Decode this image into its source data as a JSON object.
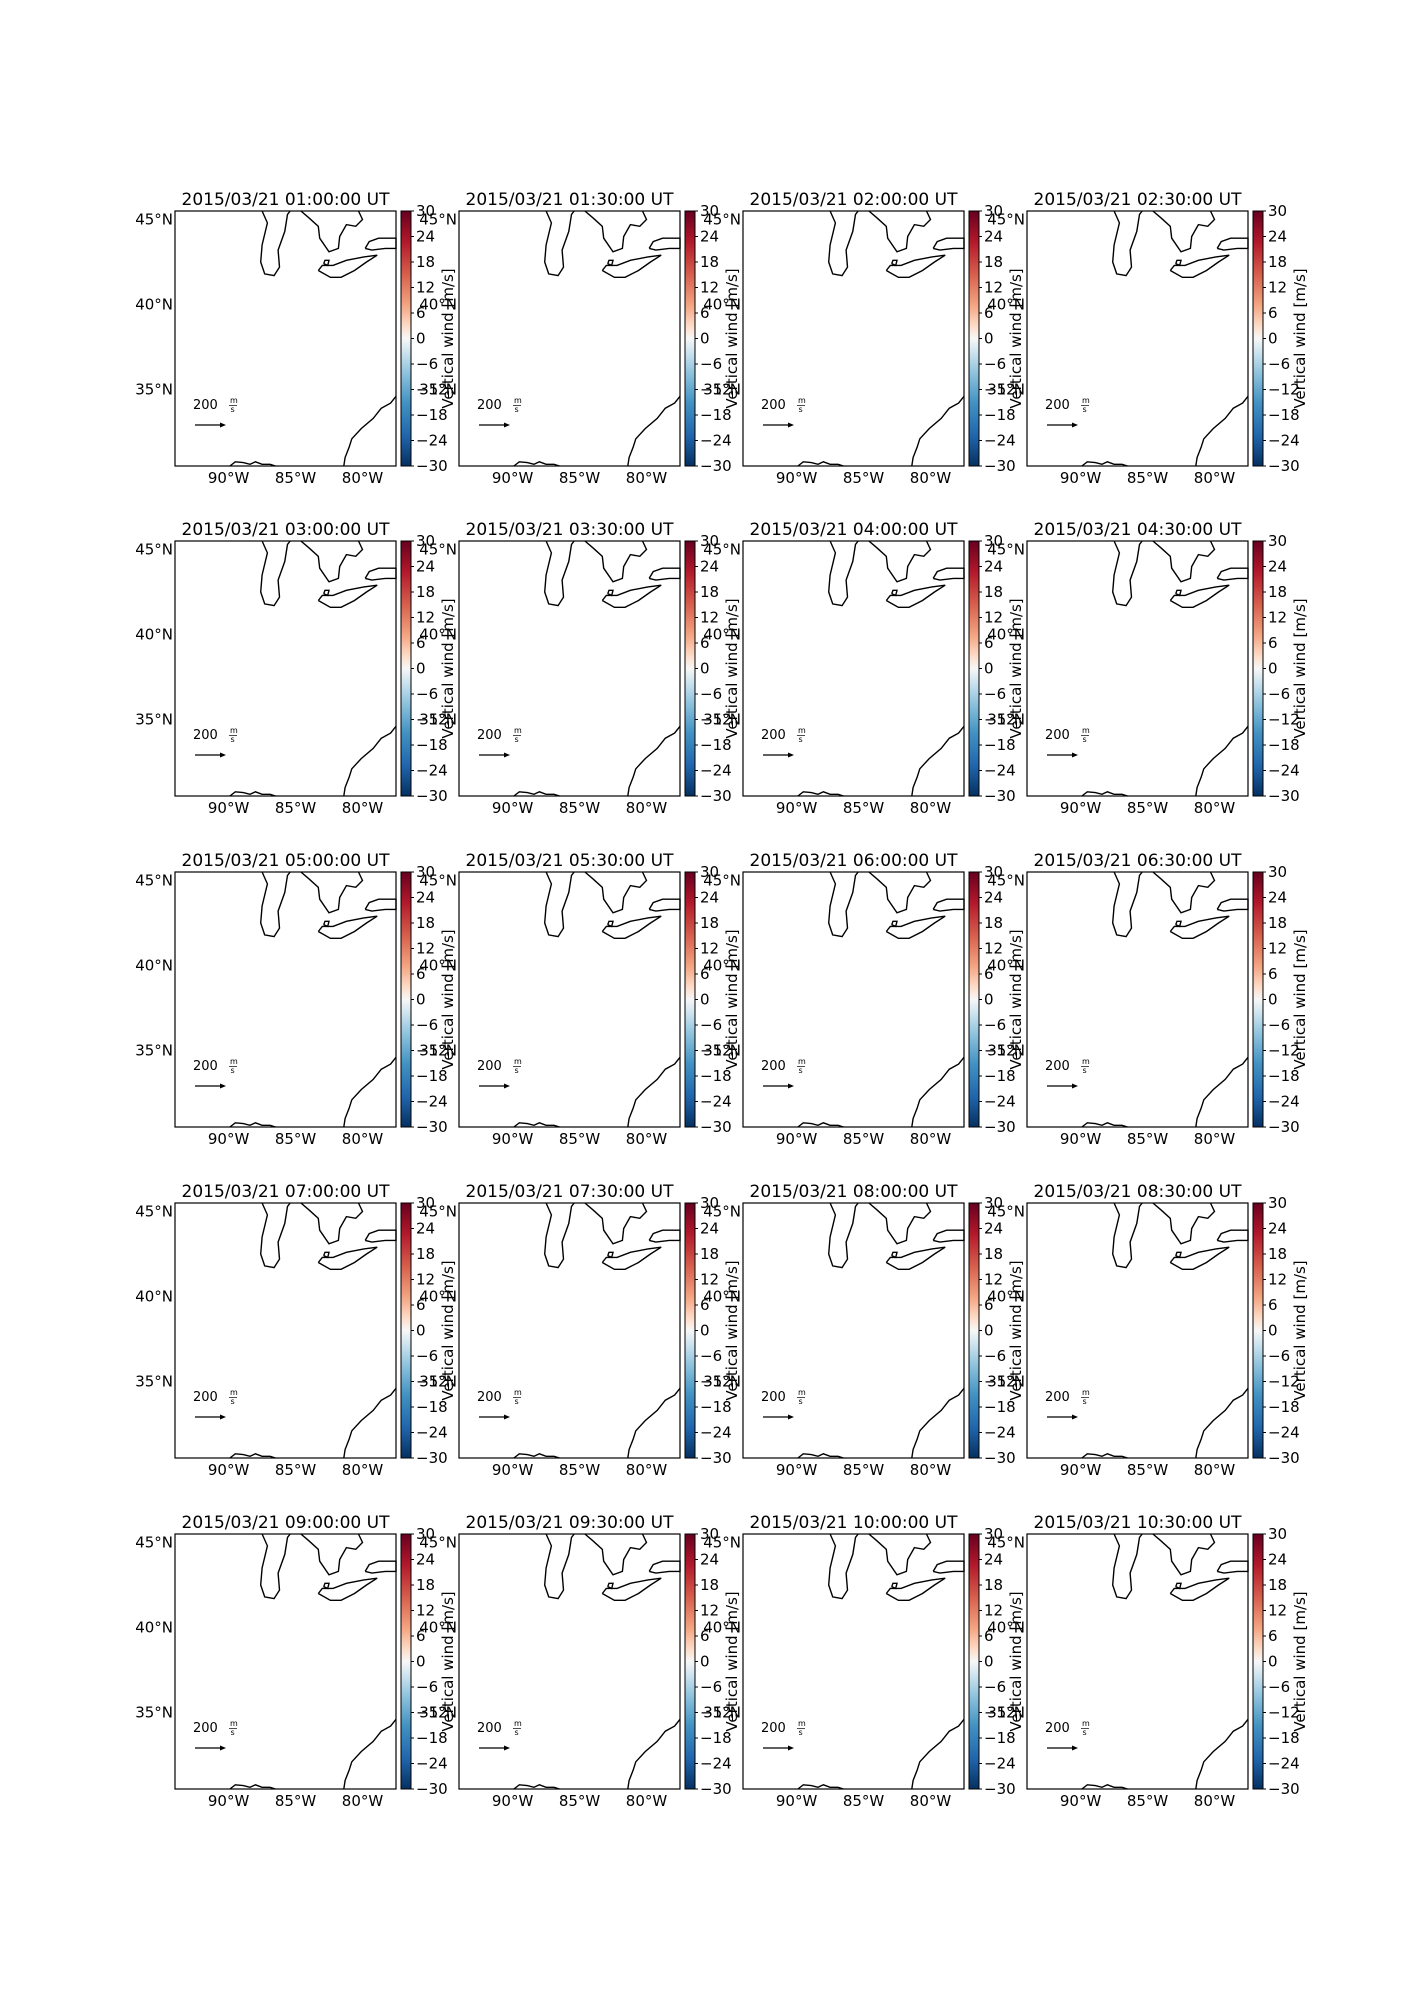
{
  "panels": [
    {
      "title": "2015/03/21 01:00:00 UT"
    },
    {
      "title": "2015/03/21 01:30:00 UT"
    },
    {
      "title": "2015/03/21 02:00:00 UT"
    },
    {
      "title": "2015/03/21 02:30:00 UT"
    },
    {
      "title": "2015/03/21 03:00:00 UT"
    },
    {
      "title": "2015/03/21 03:30:00 UT"
    },
    {
      "title": "2015/03/21 04:00:00 UT"
    },
    {
      "title": "2015/03/21 04:30:00 UT"
    },
    {
      "title": "2015/03/21 05:00:00 UT"
    },
    {
      "title": "2015/03/21 05:30:00 UT"
    },
    {
      "title": "2015/03/21 06:00:00 UT"
    },
    {
      "title": "2015/03/21 06:30:00 UT"
    },
    {
      "title": "2015/03/21 07:00:00 UT"
    },
    {
      "title": "2015/03/21 07:30:00 UT"
    },
    {
      "title": "2015/03/21 08:00:00 UT"
    },
    {
      "title": "2015/03/21 08:30:00 UT"
    },
    {
      "title": "2015/03/21 09:00:00 UT"
    },
    {
      "title": "2015/03/21 09:30:00 UT"
    },
    {
      "title": "2015/03/21 10:00:00 UT"
    },
    {
      "title": "2015/03/21 10:30:00 UT"
    }
  ],
  "map": {
    "lat_ticks": [
      "45°N",
      "40°N",
      "35°N"
    ],
    "lon_ticks": [
      "90°W",
      "85°W",
      "80°W"
    ],
    "lat_range": [
      30.5,
      45.5
    ],
    "lon_range": [
      -94,
      -77.5
    ]
  },
  "vector_key": {
    "value": "200",
    "unit_num": "m",
    "unit_den": "s"
  },
  "colorbar": {
    "label": "Vertical wind [m/s]",
    "ticks": [
      "30",
      "24",
      "18",
      "12",
      "6",
      "0",
      "−6",
      "−12",
      "−18",
      "−24",
      "−30"
    ],
    "range": [
      -30,
      30
    ],
    "colormap": "RdBu_r",
    "color_top": "#67001f",
    "color_mid": "#f7f7f7",
    "color_bottom": "#053061"
  }
}
